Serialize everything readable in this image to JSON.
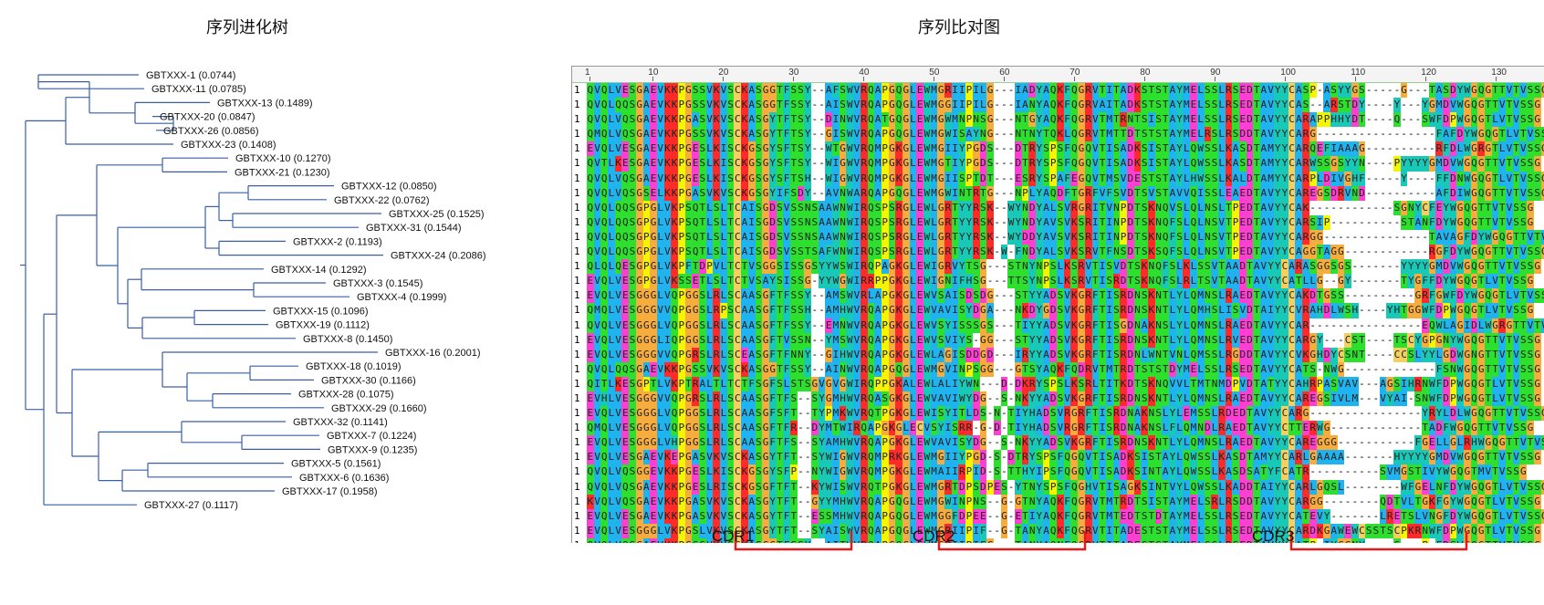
{
  "tree_title": "序列进化树",
  "alignment_title": "序列比对图",
  "tree_leaves": [
    {
      "name": "GBTXXX-1",
      "dist": "(0.0744)"
    },
    {
      "name": "GBTXXX-11",
      "dist": "(0.0785)"
    },
    {
      "name": "GBTXXX-13",
      "dist": "(0.1489)"
    },
    {
      "name": "GBTXXX-20",
      "dist": "(0.0847)"
    },
    {
      "name": "GBTXXX-26",
      "dist": "(0.0856)"
    },
    {
      "name": "GBTXXX-23",
      "dist": "(0.1408)"
    },
    {
      "name": "GBTXXX-10",
      "dist": "(0.1270)"
    },
    {
      "name": "GBTXXX-21",
      "dist": "(0.1230)"
    },
    {
      "name": "GBTXXX-12",
      "dist": "(0.0850)"
    },
    {
      "name": "GBTXXX-22",
      "dist": "(0.0762)"
    },
    {
      "name": "GBTXXX-25",
      "dist": "(0.1525)"
    },
    {
      "name": "GBTXXX-31",
      "dist": "(0.1544)"
    },
    {
      "name": "GBTXXX-2",
      "dist": "(0.1193)"
    },
    {
      "name": "GBTXXX-24",
      "dist": "(0.2086)"
    },
    {
      "name": "GBTXXX-14",
      "dist": "(0.1292)"
    },
    {
      "name": "GBTXXX-3",
      "dist": "(0.1545)"
    },
    {
      "name": "GBTXXX-4",
      "dist": "(0.1999)"
    },
    {
      "name": "GBTXXX-15",
      "dist": "(0.1096)"
    },
    {
      "name": "GBTXXX-19",
      "dist": "(0.1112)"
    },
    {
      "name": "GBTXXX-8",
      "dist": "(0.1450)"
    },
    {
      "name": "GBTXXX-16",
      "dist": "(0.2001)"
    },
    {
      "name": "GBTXXX-18",
      "dist": "(0.1019)"
    },
    {
      "name": "GBTXXX-30",
      "dist": "(0.1166)"
    },
    {
      "name": "GBTXXX-28",
      "dist": "(0.1075)"
    },
    {
      "name": "GBTXXX-29",
      "dist": "(0.1660)"
    },
    {
      "name": "GBTXXX-32",
      "dist": "(0.1141)"
    },
    {
      "name": "GBTXXX-7",
      "dist": "(0.1224)"
    },
    {
      "name": "GBTXXX-9",
      "dist": "(0.1235)"
    },
    {
      "name": "GBTXXX-5",
      "dist": "(0.1561)"
    },
    {
      "name": "GBTXXX-6",
      "dist": "(0.1636)"
    },
    {
      "name": "GBTXXX-17",
      "dist": "(0.1958)"
    },
    {
      "name": "GBTXXX-27",
      "dist": "(0.1117)"
    }
  ],
  "ruler_ticks": [
    "1",
    "10",
    "20",
    "30",
    "40",
    "50",
    "60",
    "70",
    "80",
    "90",
    "100",
    "110",
    "120",
    "130"
  ],
  "row_number": "1",
  "sequences": [
    "QVQLVESGAEVKKPGSSVKVSCKASGGTFSSY--AFSWVRQAPGQGLEWMGRIIPILG---IADYAQKFQGRVTITADKSTSTAYMELSSLRSEDTAVYYCASP-ASYYGS-----G---TASDYWGQGTTVTVSSG",
    "QVQLQQSGAEVKKPGSSVKVSCKASGGTFSSY--AISWVRQAPGQGLEWMGGIIPILG---IANYAQKFQGRVAITADKSTSTAYMELSSLRSEDTAVYYCAS--ARSTDY----Y---YGMDVWGQGTTVTVSSG",
    "QVQLVQSGAEVKKPGASVKVSCKASGYTFTSY--DINWVRQATGQGLEWMGWMNPNSG---NTGYAQKFQGRVTMTRNTSISTAYMELSSLRSEDTAVYYCARAPPHHYDT----Q---SWFDPWGQGTLVTVSSG",
    "QMQLVQSGAEVKKPGSSVKVSCKASGYTFTSY--GISWVRQAPGQGLEWMGWISAYNG---NTNYTQKLQGRVTMTTDTSTSTAYMELRSLRSDDTAVYYCARG-----------------FAFDYWGQGTLVTVSSG",
    "EVQLVESGAEVKKPGESLKISCKGSGYSFTSY--WTGWVRQMPGKGLEWMGIIYPGDS---DTRYSPSFQGQVTISADKSISTAYLQWSSLKASDTAMYYCARQEFIAAAG----------RFDLWGRGTLVTVSSG",
    "QVTLKESGAEVKKPGESLKISCKGSGYSFTSY--WIGWVRQMPGKGLEWMGTIYPGDS---DTRYSPSFQGQVTISADKSISTAYLQWSSLKASDTAMYYCARWSSGSYYN----PYYYYGMDVWGQGTTVTVSSG",
    "QVQLVQSGAEVKKPGESLKISCKGSGYSFTSH--WIGWVRQMPGKGLEWMGIISPTDT---ESRYSPAFEGQVTMSVDESTSTAYLHWSSLKALDTAMYYCARPLDIVGHF-----Y----FFDNWGQGTLVTVSSG",
    "QVQLVQSGSELKKPGASVKVSCKGSGYIFSDY--AVNWARQAPGQGLEWMGWINTRTG---NPLYAQDFTGRFVFSVDTSVSTAVVQISSLEAEDTAVYYCAREGSDRVND----------AFDIWGQGTTVTVSSG",
    "QVQLQQSGPGLVKPSQTLSLTCAISGDSVSSNSAAWNWIRQSPSRGLEWLGRTYYRSK--WYNDYALSVRGRITVNPDTSKNQVSLQLNSLTPEDTAVYYCAK------------SGNYCFEYWGQGTTVTVSSG",
    "QVQLQQSGPGLVKPSQTLSLTCAISGDSVSSNSAAWNWIRQSPSRGLEWLGRTYYRSK--WYNDYAVSVKSRITINPDTSKNQFSLQLNSVTPEDTAVYYCARSIP----------STANFDYWGQGTTVTVSSG",
    "QVQLQQSGPGLVKPSQTLSLTCAISGDSVSSNSAAWNWIRQSPSRGLEWLGRTYYRSK--WYDDYAVSVKSRITINPDTSKNQFSLQLNSVTPEDTAVYYCARGG---------------TAVAGFDYWGQGTTVTVSSG",
    "QVQLQQSGPGLVKPSQTLSLTCAISGDSVSSTSAFWNWIRQSPSRGLEWLGRTYYRSK-W-FNDYALSVKSRVTFNSDTSKSQFSLQLNSVTPEDTAVYYCAGGTAGG------------RGFDYWGQGTTVTVSSG",
    "QLQLQESGPGLVKPFTDPVLTCTVSGGSISSGSYYWSWIRQPAGKGLEWIGRVYTSG---STNYNPSLKSRVTISVDTSKNQFSLKLSSVTAADTAVYYCARASGGSGS-------YYYYGMDVWGQGTTVTVSSG",
    "EVQLVESGPGLVKSSETLSLTCTVSAYSISSG-YYWGWIRRPPGKGLEWIGNIFHSG---TTSYNPSLKSRVTISRDTSKNQFSLRLTSVTAADTAVYYCATLLG--GY-------TYGFFDYWGQGTLVTVSSG",
    "EVQLVESGGGLVQPGGSLRLSCAASGFTFSSY--AMSWVRLAPGKGLEWVSAISDSDG---STYYADSVKGRFTISRDNSKNTLYLQMNSLRAEDTAVYYCAKDTGSS----------GRFGWFDYWGQGTLVTVSSG",
    "QMQLVESGGGVVQPGGSLRPSCAASGFTFSSH--AMHWVRQAPGKGLEWVAVISYDGA---NKDYGDSVKGRFTISRDNSKNTLYLQMHSLISVDTAIYYCVRAHDLWSH----YHTGGWFDPWGQGTLVTVSSG",
    "QVQLVESGGGLVQPGGSLRLSCAASGFTFSSY--EMNWVRQAPGKGLEWVSYISSSGS---TIYYADSVKGRFTISGDNAKNSLYLQMNSLRAEDTAVYYCAR----------------EQWLAGIDLWGRGTTVTVSSG",
    "EVQLVESGGGLIQPGGSLRLSCAASGFTVSSN--YMSWVRQAPGKGLEWVSVIYS-GG---STYYADSVKGRFTISRDNSKNTLYLQMNSLRVEDTAVYYCARGY---CST----TSCYGPGNYWGQGTTVTVSSG",
    "EVQLVESGGGVVQPGRSLRLSCEASGFTFNNY--GIHWVRQAPGKGLEWLAGISDDGD---IRYYADSVKGRFTISRDNLWNTVNLQMSSLRGDDTAVYYCVKGHDYCSNT----CCSLYYLGDWGNGTTVTVSSG",
    "QVQLQQSGAEVKKPGSSVKVSCKASGGTFSSY--AINWVRQAPGQGLEWMGVINPSGG---GTSYAQKFQDRVTMTRDTSTSTDYMELSSLRSEDTAVYYCATS-NWG-------------FSNWGQGTTVTVSSG",
    "QITLKESGPTLVKPTRALTLTCTFSGFSLSTSGVGVGWIRQPPGKALEWLALIYWN---D-DKRYSPSLKSRLTITKDTSKNQVVLTMTNMDPVDTATYYCAHRPASVAV---AGSIHRNWFDPWGQGTLVTVSSG",
    "EVHLVESGGGVVQPGRSLRLSCAASGFTFS--SYGMHWVRQASGKGLEWVAVIWYDG--S-NKYYADSVKGRFTISRDNSKNTLYLQMNSLRAEDTAVYYCAREGSIVLM---VYAI-SNWFDPWGQGTLVTVSSG",
    "EVQLVESGGGLVQPGGSLRLSCAASGFSFT--TYPMKWVRQTPGKGLEWISYITLDS-N-TIYHADSVRGRFTISRDNAKNSLYLEMSSLRDEDTAVYYCARG----------------YRYLDLWGQGTTVTVSSG",
    "QMQLVESGGGLVQPGGSLRLSCAASGFTFR--DYMTWIRQAPGKGLECVSYISRR-G-D-TIYHADSVRGRFTISRDNAKNSLFLQMNDLRAEDTAVYYCTTERWG-------------TADFWGQGTTVTVSSG",
    "EVQLVESGGGLVHPGGSLRLSCAASGFTFS--SYAMHWVRQAPGKGLEWVAVISYDG--S-NKYYADSVKGRFTISRDNSKNTLYLQMNSLRAEDTAVYYCAREGGG-----------FGELLGLRHWGQGTTVTVSSG",
    "EVQLVESGAEVKEPGASVKVSCKASGYTFT--SYWIGWVRQMPRKGLEWMGIIYPGD-S-DTRYSPSFQGQVTISADKSISTAYLQWSSLKASDTAMYYCARLGAAAA-------HYYYYGMDVWGQGTTVTVSSG",
    "QVQLVQSGGEVKKPGESLKISCKGSGYSFP--NYWIGWVRQMPGKGLEWMAIIRPID-S-TTHYIPSFQGQVTISADKSINTAYLQWSSLKASDSATYFCATR----------SVMGSTIVYWGQGTMVTVSSG",
    "QVQLVQSGAEVKKPGESLRISCKGSGFTFT--KYWISWVRQTPGKGLEWMGRTDPSDPES-YTNYSPSFQGHVTISAGKSINTVYLQWSSLKADDTAIYYCARLGQSL--------WFGELNFDYWGQGTLVTVSSG",
    "KVQLVQSGAEVKKPGASVKVSCKASGYTFT--GYYMHWVRQAPGQGLEWMGWINPNS--G-GTNYAQKFQGRVTMTRDTSISTAYMELSRLRSDDTAVYYCARGG--------QDTVLTGKFGYWGQGTLVTVSSG",
    "EVQLVESGAEVKKPGASVKVSCKASGYTFT--ESSMHWVRQAPGQGLEWMGGFDPEE--G-ETIYAQKFQGRVTMTEDTSTDTAYMELSSLRSEDTAVYYCATEVY-------LRETSLVNGFDYWGQGTLVTVSSG",
    "EVQLVESGGGLVKPGSLVKVSCKASGYTFT--SYAISWVRQAPGQGLEWMGRIIPIF--G-TANYAQKFQGRVTITADESTSTAYMELSSLRSEDTAVYYCARDKGAWEWCSSTSCPKRNWFDPWGQGTLVTVSSG",
    "QVQLVQSGAEVKKPGSSVKVSCKASGGTFSSY--AITWVRQAPGQGLEWMGRIIPIFG---TANYAQNFQGRVTITADESTSTAYMELSSLRSEDTAVYYCATP-IYGGNY----S---P-FDSWGQGTTVTVSSG"
  ],
  "cdr_labels": [
    "CDR1",
    "CDR2",
    "CDR3"
  ],
  "colors": {
    "hydrophobic": "#1fb3f0",
    "neg_charge": "#ff3fd4",
    "pos_charge": "#ff2a2a",
    "polar": "#2de02d",
    "glycine": "#f7ad3e",
    "proline": "#f5f500",
    "cysteine": "#f5d060",
    "aromatic": "#18c9b7",
    "cdr_bracket": "#e31a1c"
  }
}
